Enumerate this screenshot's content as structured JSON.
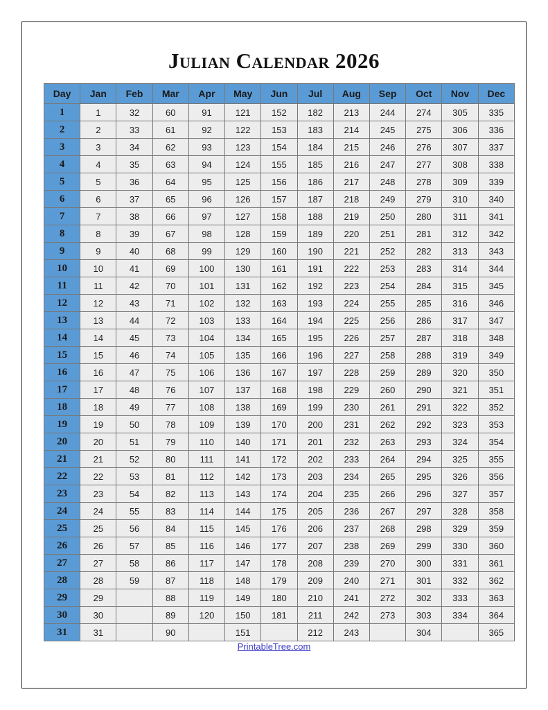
{
  "title": "Julian Calendar 2026",
  "colors": {
    "header_bg": "#5B9BD5",
    "cell_bg": "#EDEDED",
    "border": "#777777",
    "link": "#3B3BC8"
  },
  "table": {
    "headers": [
      "Day",
      "Jan",
      "Feb",
      "Mar",
      "Apr",
      "May",
      "Jun",
      "Jul",
      "Aug",
      "Sep",
      "Oct",
      "Nov",
      "Dec"
    ],
    "rows": [
      [
        "1",
        "1",
        "32",
        "60",
        "91",
        "121",
        "152",
        "182",
        "213",
        "244",
        "274",
        "305",
        "335"
      ],
      [
        "2",
        "2",
        "33",
        "61",
        "92",
        "122",
        "153",
        "183",
        "214",
        "245",
        "275",
        "306",
        "336"
      ],
      [
        "3",
        "3",
        "34",
        "62",
        "93",
        "123",
        "154",
        "184",
        "215",
        "246",
        "276",
        "307",
        "337"
      ],
      [
        "4",
        "4",
        "35",
        "63",
        "94",
        "124",
        "155",
        "185",
        "216",
        "247",
        "277",
        "308",
        "338"
      ],
      [
        "5",
        "5",
        "36",
        "64",
        "95",
        "125",
        "156",
        "186",
        "217",
        "248",
        "278",
        "309",
        "339"
      ],
      [
        "6",
        "6",
        "37",
        "65",
        "96",
        "126",
        "157",
        "187",
        "218",
        "249",
        "279",
        "310",
        "340"
      ],
      [
        "7",
        "7",
        "38",
        "66",
        "97",
        "127",
        "158",
        "188",
        "219",
        "250",
        "280",
        "311",
        "341"
      ],
      [
        "8",
        "8",
        "39",
        "67",
        "98",
        "128",
        "159",
        "189",
        "220",
        "251",
        "281",
        "312",
        "342"
      ],
      [
        "9",
        "9",
        "40",
        "68",
        "99",
        "129",
        "160",
        "190",
        "221",
        "252",
        "282",
        "313",
        "343"
      ],
      [
        "10",
        "10",
        "41",
        "69",
        "100",
        "130",
        "161",
        "191",
        "222",
        "253",
        "283",
        "314",
        "344"
      ],
      [
        "11",
        "11",
        "42",
        "70",
        "101",
        "131",
        "162",
        "192",
        "223",
        "254",
        "284",
        "315",
        "345"
      ],
      [
        "12",
        "12",
        "43",
        "71",
        "102",
        "132",
        "163",
        "193",
        "224",
        "255",
        "285",
        "316",
        "346"
      ],
      [
        "13",
        "13",
        "44",
        "72",
        "103",
        "133",
        "164",
        "194",
        "225",
        "256",
        "286",
        "317",
        "347"
      ],
      [
        "14",
        "14",
        "45",
        "73",
        "104",
        "134",
        "165",
        "195",
        "226",
        "257",
        "287",
        "318",
        "348"
      ],
      [
        "15",
        "15",
        "46",
        "74",
        "105",
        "135",
        "166",
        "196",
        "227",
        "258",
        "288",
        "319",
        "349"
      ],
      [
        "16",
        "16",
        "47",
        "75",
        "106",
        "136",
        "167",
        "197",
        "228",
        "259",
        "289",
        "320",
        "350"
      ],
      [
        "17",
        "17",
        "48",
        "76",
        "107",
        "137",
        "168",
        "198",
        "229",
        "260",
        "290",
        "321",
        "351"
      ],
      [
        "18",
        "18",
        "49",
        "77",
        "108",
        "138",
        "169",
        "199",
        "230",
        "261",
        "291",
        "322",
        "352"
      ],
      [
        "19",
        "19",
        "50",
        "78",
        "109",
        "139",
        "170",
        "200",
        "231",
        "262",
        "292",
        "323",
        "353"
      ],
      [
        "20",
        "20",
        "51",
        "79",
        "110",
        "140",
        "171",
        "201",
        "232",
        "263",
        "293",
        "324",
        "354"
      ],
      [
        "21",
        "21",
        "52",
        "80",
        "111",
        "141",
        "172",
        "202",
        "233",
        "264",
        "294",
        "325",
        "355"
      ],
      [
        "22",
        "22",
        "53",
        "81",
        "112",
        "142",
        "173",
        "203",
        "234",
        "265",
        "295",
        "326",
        "356"
      ],
      [
        "23",
        "23",
        "54",
        "82",
        "113",
        "143",
        "174",
        "204",
        "235",
        "266",
        "296",
        "327",
        "357"
      ],
      [
        "24",
        "24",
        "55",
        "83",
        "114",
        "144",
        "175",
        "205",
        "236",
        "267",
        "297",
        "328",
        "358"
      ],
      [
        "25",
        "25",
        "56",
        "84",
        "115",
        "145",
        "176",
        "206",
        "237",
        "268",
        "298",
        "329",
        "359"
      ],
      [
        "26",
        "26",
        "57",
        "85",
        "116",
        "146",
        "177",
        "207",
        "238",
        "269",
        "299",
        "330",
        "360"
      ],
      [
        "27",
        "27",
        "58",
        "86",
        "117",
        "147",
        "178",
        "208",
        "239",
        "270",
        "300",
        "331",
        "361"
      ],
      [
        "28",
        "28",
        "59",
        "87",
        "118",
        "148",
        "179",
        "209",
        "240",
        "271",
        "301",
        "332",
        "362"
      ],
      [
        "29",
        "29",
        "",
        "88",
        "119",
        "149",
        "180",
        "210",
        "241",
        "272",
        "302",
        "333",
        "363"
      ],
      [
        "30",
        "30",
        "",
        "89",
        "120",
        "150",
        "181",
        "211",
        "242",
        "273",
        "303",
        "334",
        "364"
      ],
      [
        "31",
        "31",
        "",
        "90",
        "",
        "151",
        "",
        "212",
        "243",
        "",
        "304",
        "",
        "365"
      ]
    ]
  },
  "footer": {
    "link_text": "PrintableTree.com"
  }
}
